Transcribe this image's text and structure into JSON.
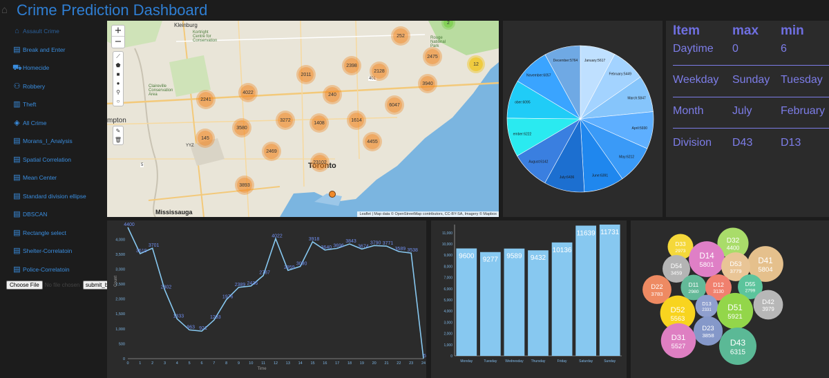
{
  "header": {
    "title": "Crime Prediction Dashboard"
  },
  "sidebar": {
    "items": [
      {
        "label": "Assault Crime",
        "icon": "home-icon"
      },
      {
        "label": "Break and Enter",
        "icon": "document-icon"
      },
      {
        "label": "Homecide",
        "icon": "cart-icon"
      },
      {
        "label": "Robbery",
        "icon": "users-icon"
      },
      {
        "label": "Theft",
        "icon": "bar-chart-icon"
      },
      {
        "label": "All Crime",
        "icon": "layers-icon"
      },
      {
        "label": "Morans_I_Analysis",
        "icon": "document-icon"
      },
      {
        "label": "Spatial Correlation",
        "icon": "document-icon"
      },
      {
        "label": "Mean Center",
        "icon": "document-icon"
      },
      {
        "label": "Standard division ellipse",
        "icon": "document-icon"
      },
      {
        "label": "DBSCAN",
        "icon": "document-icon"
      },
      {
        "label": "Rectangle select",
        "icon": "document-icon"
      },
      {
        "label": "Shelter-Correlatoin",
        "icon": "document-icon"
      },
      {
        "label": "Police-Correlatoin",
        "icon": "document-icon"
      }
    ],
    "file_button": "Choose File",
    "file_status": "No file chosen",
    "submit_button": "submit_button"
  },
  "map": {
    "zoom_in": "+",
    "zoom_out": "−",
    "labels": [
      "Kleinburg",
      "Kortright Centre for Conservation",
      "Claireville Conservation Area",
      "Rouge National Park",
      "mpton",
      "Mississauga",
      "Toronto",
      "YYZ",
      "401",
      "5"
    ],
    "clusters": [
      {
        "value": "252",
        "color": "orange"
      },
      {
        "value": "2475",
        "color": "orange"
      },
      {
        "value": "12",
        "color": "yellow"
      },
      {
        "value": "2",
        "color": "green"
      },
      {
        "value": "2011",
        "color": "orange"
      },
      {
        "value": "2398",
        "color": "orange"
      },
      {
        "value": "2128",
        "color": "orange"
      },
      {
        "value": "3940",
        "color": "orange"
      },
      {
        "value": "4022",
        "color": "orange"
      },
      {
        "value": "2241",
        "color": "orange"
      },
      {
        "value": "240",
        "color": "orange"
      },
      {
        "value": "6047",
        "color": "orange"
      },
      {
        "value": "3272",
        "color": "orange"
      },
      {
        "value": "1408",
        "color": "orange"
      },
      {
        "value": "1614",
        "color": "orange"
      },
      {
        "value": "3580",
        "color": "orange"
      },
      {
        "value": "145",
        "color": "orange"
      },
      {
        "value": "4455",
        "color": "orange"
      },
      {
        "value": "2469",
        "color": "orange"
      },
      {
        "value": "23102",
        "color": "orange"
      },
      {
        "value": "3893",
        "color": "orange"
      }
    ],
    "attribution": "Leaflet | Map data © OpenStreetMap contributors, CC-BY-SA, Imagery © Mapbox"
  },
  "summary_table": {
    "headers": [
      "Item",
      "max",
      "min"
    ],
    "rows": [
      {
        "item": "Daytime",
        "max": "0",
        "min": "6"
      },
      {
        "item": "Weekday",
        "max": "Sunday",
        "min": "Tuesday"
      },
      {
        "item": "Month",
        "max": "July",
        "min": "February"
      },
      {
        "item": "Division",
        "max": "D43",
        "min": "D13"
      }
    ]
  },
  "chart_data": [
    {
      "type": "pie",
      "title": "",
      "categories": [
        "January",
        "February",
        "March",
        "April",
        "May",
        "June",
        "July",
        "August",
        "September",
        "October",
        "November",
        "December"
      ],
      "values": [
        5617,
        5449,
        5847,
        5930,
        6212,
        6391,
        6436,
        6142,
        6222,
        6095,
        6057,
        5764
      ],
      "labels": [
        "January:5617",
        "February:5449",
        "March:5847",
        "April:5930",
        "May:6212",
        "June:6391",
        "July:6436",
        "August:6142",
        "ember:6222",
        "ober:6095",
        "November:6057",
        "December:5764"
      ],
      "colors": [
        "#bfe0ff",
        "#a3d3ff",
        "#86c5fb",
        "#5eafff",
        "#3a9af7",
        "#1f87ee",
        "#1c6fd0",
        "#3a7fe0",
        "#2aeaf0",
        "#20ccf7",
        "#3aa4ff",
        "#6fa9e4"
      ]
    },
    {
      "type": "line",
      "title": "",
      "xlabel": "Time",
      "ylabel": "Count",
      "x": [
        0,
        1,
        2,
        3,
        4,
        5,
        6,
        7,
        8,
        9,
        10,
        11,
        12,
        13,
        14,
        15,
        16,
        17,
        18,
        19,
        20,
        21,
        22,
        23,
        24
      ],
      "values": [
        4400,
        3519,
        3701,
        2302,
        1333,
        963,
        921,
        1293,
        1976,
        2389,
        2436,
        2787,
        4022,
        2959,
        3090,
        3918,
        3640,
        3696,
        3843,
        3674,
        3790,
        3771,
        3589,
        3538,
        5
      ],
      "ylim": [
        0,
        4400
      ],
      "yticks": [
        0,
        500,
        1000,
        1500,
        2000,
        2500,
        3000,
        3500,
        4000
      ],
      "ytick_labels": [
        "0",
        "500",
        "1,000",
        "1,500",
        "2,000",
        "2,500",
        "3,000",
        "3,500",
        "4,000"
      ],
      "color": "#87c8f0"
    },
    {
      "type": "bar",
      "title": "",
      "categories": [
        "Monday",
        "Tuesday",
        "Wednesday",
        "Thursday",
        "Friday",
        "Saturday",
        "Sunday"
      ],
      "values": [
        9600,
        9277,
        9589,
        9432,
        10136,
        11639,
        11731
      ],
      "ylim": [
        0,
        11731
      ],
      "yticks": [
        0,
        1000,
        2000,
        3000,
        4000,
        5000,
        6000,
        7000,
        8000,
        9000,
        10000,
        11000
      ],
      "ytick_labels": [
        "0",
        "1,000",
        "2,000",
        "3,000",
        "4,000",
        "5,000",
        "6,000",
        "7,000",
        "8,000",
        "9,000",
        "10,000",
        "11,000"
      ],
      "color": "#87c8f0"
    },
    {
      "type": "bubble",
      "title": "",
      "bubbles": [
        {
          "label": "D33",
          "value": 2973,
          "color": "#f5d83a"
        },
        {
          "label": "D32",
          "value": 4400,
          "color": "#a9dc6a"
        },
        {
          "label": "D14",
          "value": 5801,
          "color": "#df7fc6"
        },
        {
          "label": "D41",
          "value": 5804,
          "color": "#e5c08c"
        },
        {
          "label": "D54",
          "value": 3459,
          "color": "#b4b4b4"
        },
        {
          "label": "D53",
          "value": 3779,
          "color": "#e9c596"
        },
        {
          "label": "D22",
          "value": 3783,
          "color": "#ee8a62"
        },
        {
          "label": "D11",
          "value": 2980,
          "color": "#63b998"
        },
        {
          "label": "D12",
          "value": 3130,
          "color": "#f0806e"
        },
        {
          "label": "D55",
          "value": 2799,
          "color": "#5cc49c"
        },
        {
          "label": "D52",
          "value": 5563,
          "color": "#f8d41f"
        },
        {
          "label": "D13",
          "value": 2331,
          "color": "#8f9fce"
        },
        {
          "label": "D51",
          "value": 5921,
          "color": "#93d64a"
        },
        {
          "label": "D42",
          "value": 3979,
          "color": "#b7b7b7"
        },
        {
          "label": "D23",
          "value": 3858,
          "color": "#8598c9"
        },
        {
          "label": "D31",
          "value": 5527,
          "color": "#de7fc2"
        },
        {
          "label": "D43",
          "value": 6315,
          "color": "#5bb996"
        }
      ]
    }
  ]
}
